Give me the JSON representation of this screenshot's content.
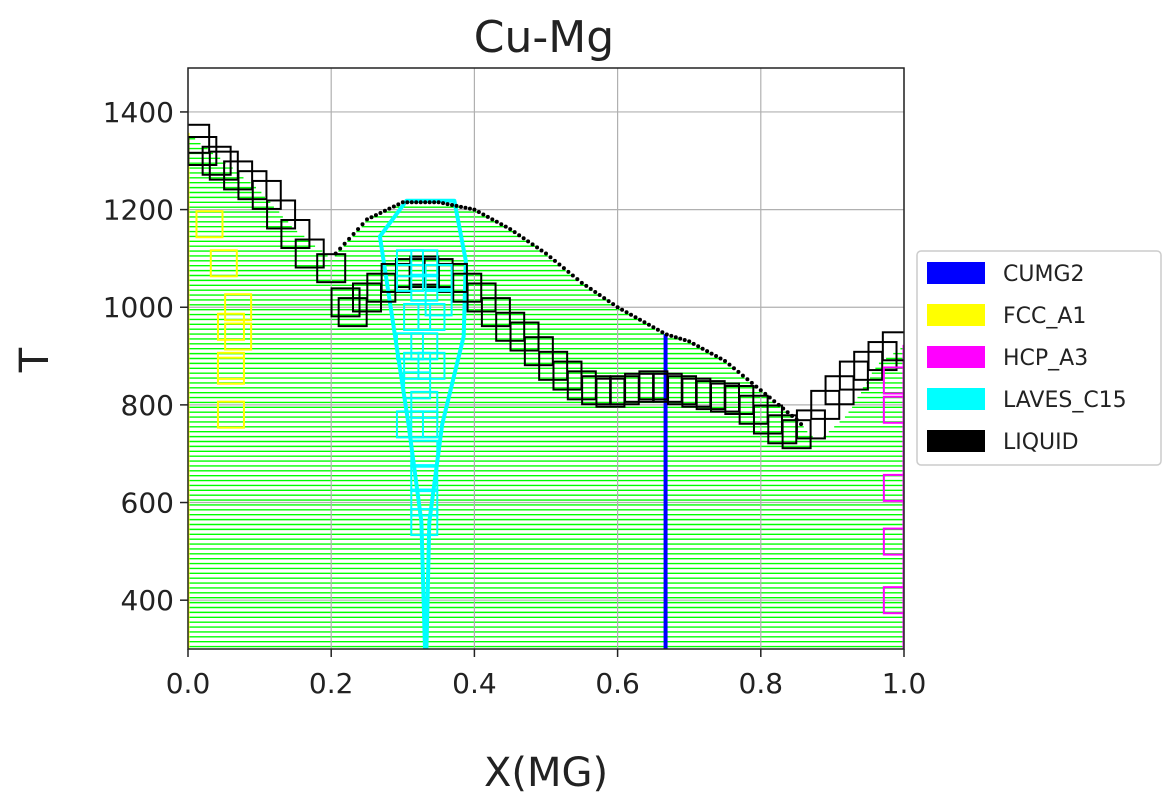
{
  "chart_data": {
    "type": "scatter",
    "title": "Cu-Mg",
    "xlabel": "X(MG)",
    "ylabel": "T",
    "xlim": [
      0.0,
      1.0
    ],
    "ylim": [
      300,
      1490
    ],
    "x_ticks": [
      "0.0",
      "0.2",
      "0.4",
      "0.6",
      "0.8",
      "1.0"
    ],
    "y_ticks": [
      "400",
      "600",
      "800",
      "1000",
      "1200",
      "1400"
    ],
    "grid": true,
    "legend_position": "right",
    "two_phase_region_color": "#00ff00",
    "legend": [
      {
        "name": "CUMG2",
        "color": "#0000ff"
      },
      {
        "name": "FCC_A1",
        "color": "#ffff00"
      },
      {
        "name": "HCP_A3",
        "color": "#ff00ff"
      },
      {
        "name": "LAVES_C15",
        "color": "#00ffff"
      },
      {
        "name": "LIQUID",
        "color": "#000000"
      }
    ],
    "phase_boundaries": {
      "cumg2": [
        [
          0.667,
          300
        ],
        [
          0.667,
          945
        ]
      ],
      "fcc_a1": [
        [
          0.0,
          300
        ],
        [
          0.0,
          1357
        ]
      ],
      "hcp_a3": [
        [
          1.0,
          300
        ],
        [
          1.0,
          923
        ]
      ],
      "laves_c15": [
        [
          0.331,
          300
        ],
        [
          0.326,
          560
        ],
        [
          0.308,
          760
        ],
        [
          0.268,
          1145
        ],
        [
          0.305,
          1218
        ],
        [
          0.372,
          1218
        ],
        [
          0.388,
          1095
        ],
        [
          0.385,
          940
        ],
        [
          0.355,
          760
        ],
        [
          0.337,
          560
        ],
        [
          0.333,
          300
        ]
      ],
      "liquidus": [
        [
          0.0,
          1357
        ],
        [
          0.05,
          1300
        ],
        [
          0.1,
          1240
        ],
        [
          0.15,
          1160
        ],
        [
          0.2,
          1100
        ],
        [
          0.25,
          1180
        ],
        [
          0.3,
          1215
        ],
        [
          0.35,
          1215
        ],
        [
          0.4,
          1200
        ],
        [
          0.45,
          1160
        ],
        [
          0.5,
          1110
        ],
        [
          0.55,
          1050
        ],
        [
          0.6,
          1000
        ],
        [
          0.667,
          945
        ],
        [
          0.7,
          930
        ],
        [
          0.75,
          890
        ],
        [
          0.8,
          830
        ],
        [
          0.85,
          770
        ],
        [
          0.88,
          725
        ],
        [
          0.92,
          780
        ],
        [
          0.96,
          880
        ],
        [
          1.0,
          923
        ]
      ]
    },
    "series": [
      {
        "name": "LIQUID",
        "color": "#000000",
        "x": [
          0.01,
          0.02,
          0.04,
          0.05,
          0.07,
          0.09,
          0.11,
          0.13,
          0.15,
          0.17,
          0.2,
          0.22,
          0.23,
          0.25,
          0.27,
          0.29,
          0.31,
          0.33,
          0.35,
          0.37,
          0.39,
          0.41,
          0.43,
          0.45,
          0.47,
          0.49,
          0.51,
          0.53,
          0.55,
          0.57,
          0.59,
          0.61,
          0.63,
          0.65,
          0.67,
          0.69,
          0.71,
          0.73,
          0.75,
          0.77,
          0.79,
          0.81,
          0.83,
          0.85,
          0.87,
          0.89,
          0.91,
          0.93,
          0.95,
          0.97,
          0.99
        ],
        "y": [
          1345,
          1320,
          1300,
          1290,
          1270,
          1250,
          1230,
          1190,
          1150,
          1110,
          1080,
          1010,
          990,
          1020,
          1040,
          1060,
          1070,
          1075,
          1070,
          1060,
          1040,
          1020,
          990,
          960,
          940,
          910,
          880,
          860,
          840,
          830,
          825,
          830,
          835,
          840,
          835,
          830,
          825,
          820,
          815,
          810,
          790,
          770,
          750,
          740,
          760,
          800,
          830,
          860,
          880,
          900,
          920
        ]
      },
      {
        "name": "LAVES_C15",
        "color": "#00ffff",
        "x": [
          0.31,
          0.33,
          0.35,
          0.31,
          0.33,
          0.35,
          0.32,
          0.34,
          0.31,
          0.33,
          0.32,
          0.34,
          0.32,
          0.33,
          0.31,
          0.33,
          0.33,
          0.33,
          0.33,
          0.33
        ],
        "y": [
          1090,
          1090,
          1060,
          1060,
          1040,
          1010,
          980,
          980,
          920,
          920,
          880,
          880,
          840,
          800,
          760,
          760,
          700,
          650,
          600,
          560
        ]
      },
      {
        "name": "FCC_A1",
        "color": "#ffff00",
        "x": [
          0.03,
          0.05,
          0.07,
          0.06,
          0.07,
          0.06,
          0.06,
          0.06
        ],
        "y": [
          1170,
          1090,
          1000,
          960,
          940,
          880,
          870,
          780
        ]
      },
      {
        "name": "HCP_A3",
        "color": "#ff00ff",
        "x": [
          0.99,
          0.99,
          0.99,
          0.99,
          0.99
        ],
        "y": [
          850,
          790,
          630,
          520,
          400
        ]
      }
    ]
  }
}
